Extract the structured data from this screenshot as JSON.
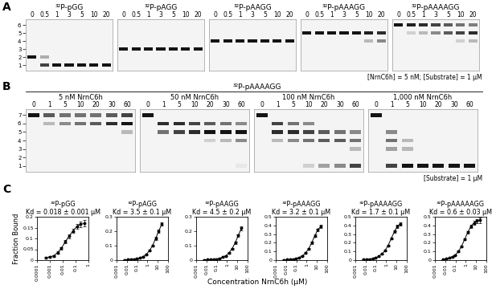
{
  "panel_labels": [
    "A",
    "B",
    "C"
  ],
  "gel_panels": [
    {
      "note": "[NrnC6h] = 5 nM; [Substrate] = 1 μM",
      "size_markers": [
        1,
        2,
        3,
        4,
        5,
        6
      ],
      "ylim": [
        0.3,
        6.7
      ],
      "gels": [
        {
          "title": "³²P-pGG",
          "lanes": [
            "0",
            "0.5",
            "1",
            "3",
            "5",
            "10",
            "20"
          ],
          "bands": [
            [
              [
                2,
                1.0
              ]
            ],
            [
              [
                2,
                0.35
              ],
              [
                1,
                0.8
              ]
            ],
            [
              [
                1,
                1.0
              ]
            ],
            [
              [
                1,
                1.0
              ]
            ],
            [
              [
                1,
                1.0
              ]
            ],
            [
              [
                1,
                1.0
              ]
            ],
            [
              [
                1,
                1.0
              ]
            ]
          ]
        },
        {
          "title": "³²P-pAGG",
          "lanes": [
            "0",
            "0.5",
            "1",
            "3",
            "5",
            "10",
            "20"
          ],
          "bands": [
            [
              [
                3,
                1.0
              ]
            ],
            [
              [
                3,
                1.0
              ]
            ],
            [
              [
                3,
                1.0
              ]
            ],
            [
              [
                3,
                1.0
              ]
            ],
            [
              [
                3,
                1.0
              ]
            ],
            [
              [
                3,
                1.0
              ]
            ],
            [
              [
                3,
                1.0
              ]
            ]
          ]
        },
        {
          "title": "³²P-pAAGG",
          "lanes": [
            "0",
            "0.5",
            "1",
            "3",
            "5",
            "10",
            "20"
          ],
          "bands": [
            [
              [
                4,
                1.0
              ]
            ],
            [
              [
                4,
                1.0
              ]
            ],
            [
              [
                4,
                1.0
              ]
            ],
            [
              [
                4,
                1.0
              ]
            ],
            [
              [
                4,
                1.0
              ]
            ],
            [
              [
                4,
                1.0
              ]
            ],
            [
              [
                4,
                1.0
              ]
            ]
          ]
        },
        {
          "title": "³²P-pAAAGG",
          "lanes": [
            "0",
            "0.5",
            "1",
            "3",
            "5",
            "10",
            "20"
          ],
          "bands": [
            [
              [
                5,
                1.0
              ]
            ],
            [
              [
                5,
                1.0
              ]
            ],
            [
              [
                5,
                1.0
              ]
            ],
            [
              [
                5,
                1.0
              ]
            ],
            [
              [
                5,
                1.0
              ]
            ],
            [
              [
                5,
                0.95
              ],
              [
                4,
                0.3
              ]
            ],
            [
              [
                5,
                0.9
              ],
              [
                4,
                0.5
              ]
            ]
          ]
        },
        {
          "title": "³²P-pAAAAGG",
          "lanes": [
            "0",
            "0.5",
            "1",
            "3",
            "5",
            "10",
            "20"
          ],
          "bands": [
            [
              [
                6,
                1.0
              ]
            ],
            [
              [
                6,
                0.95
              ],
              [
                5,
                0.2
              ]
            ],
            [
              [
                6,
                0.9
              ],
              [
                5,
                0.3
              ]
            ],
            [
              [
                6,
                0.8
              ],
              [
                5,
                0.5
              ]
            ],
            [
              [
                6,
                0.7
              ],
              [
                5,
                0.7
              ]
            ],
            [
              [
                6,
                0.6
              ],
              [
                5,
                0.8
              ],
              [
                4,
                0.2
              ]
            ],
            [
              [
                6,
                0.55
              ],
              [
                5,
                0.9
              ],
              [
                4,
                0.3
              ]
            ]
          ]
        }
      ]
    },
    {
      "header": "³²P-pAAAAGG",
      "note": "[Substrate] = 1 μM",
      "size_markers": [
        1,
        2,
        3,
        4,
        5,
        6,
        7
      ],
      "ylim": [
        0.3,
        7.7
      ],
      "gels": [
        {
          "title": "5 nM NrnC6h",
          "lanes": [
            "0",
            "1",
            "5",
            "10",
            "20",
            "30",
            "60"
          ],
          "bands": [
            [
              [
                7,
                1.0
              ]
            ],
            [
              [
                7,
                0.7
              ],
              [
                6,
                0.3
              ]
            ],
            [
              [
                7,
                0.6
              ],
              [
                6,
                0.5
              ]
            ],
            [
              [
                7,
                0.6
              ],
              [
                6,
                0.6
              ]
            ],
            [
              [
                7,
                0.6
              ],
              [
                6,
                0.7
              ]
            ],
            [
              [
                7,
                0.7
              ],
              [
                6,
                0.9
              ]
            ],
            [
              [
                7,
                0.8
              ],
              [
                6,
                1.0
              ],
              [
                5,
                0.3
              ]
            ]
          ]
        },
        {
          "title": "50 nM NrnC6h",
          "lanes": [
            "0",
            "1",
            "5",
            "10",
            "20",
            "30",
            "60"
          ],
          "bands": [
            [
              [
                7,
                1.0
              ]
            ],
            [
              [
                6,
                0.9
              ],
              [
                5,
                0.6
              ]
            ],
            [
              [
                6,
                0.9
              ],
              [
                5,
                0.8
              ]
            ],
            [
              [
                6,
                0.8
              ],
              [
                5,
                0.9
              ]
            ],
            [
              [
                6,
                0.7
              ],
              [
                5,
                1.0
              ],
              [
                4,
                0.2
              ]
            ],
            [
              [
                6,
                0.6
              ],
              [
                5,
                1.0
              ],
              [
                4,
                0.3
              ]
            ],
            [
              [
                6,
                0.5
              ],
              [
                5,
                1.0
              ],
              [
                4,
                0.5
              ],
              [
                1,
                0.1
              ]
            ]
          ]
        },
        {
          "title": "100 nM NrnC6h",
          "lanes": [
            "0",
            "1",
            "5",
            "10",
            "20",
            "30",
            "60"
          ],
          "bands": [
            [
              [
                7,
                1.0
              ]
            ],
            [
              [
                6,
                0.8
              ],
              [
                5,
                0.9
              ],
              [
                4,
                0.3
              ]
            ],
            [
              [
                6,
                0.6
              ],
              [
                5,
                0.9
              ],
              [
                4,
                0.5
              ]
            ],
            [
              [
                6,
                0.5
              ],
              [
                5,
                0.8
              ],
              [
                4,
                0.6
              ],
              [
                1,
                0.2
              ]
            ],
            [
              [
                5,
                0.7
              ],
              [
                4,
                0.7
              ],
              [
                1,
                0.4
              ]
            ],
            [
              [
                5,
                0.6
              ],
              [
                4,
                0.7
              ],
              [
                1,
                0.5
              ]
            ],
            [
              [
                5,
                0.5
              ],
              [
                4,
                0.6
              ],
              [
                3,
                0.3
              ],
              [
                1,
                0.8
              ]
            ]
          ]
        },
        {
          "title": "1,000 nM NrnC6h",
          "lanes": [
            "0",
            "1",
            "5",
            "10",
            "20",
            "30",
            "60"
          ],
          "bands": [
            [
              [
                7,
                1.0
              ]
            ],
            [
              [
                5,
                0.5
              ],
              [
                4,
                0.6
              ],
              [
                3,
                0.4
              ],
              [
                1,
                0.8
              ]
            ],
            [
              [
                4,
                0.3
              ],
              [
                3,
                0.3
              ],
              [
                1,
                1.0
              ]
            ],
            [
              [
                1,
                1.0
              ]
            ],
            [
              [
                1,
                1.0
              ]
            ],
            [
              [
                1,
                1.0
              ]
            ],
            [
              [
                1,
                1.0
              ]
            ]
          ]
        }
      ]
    }
  ],
  "x_label": "Concentration NrnC6h (μM)",
  "chart_data": [
    {
      "type": "line",
      "title": "³²P-pGG",
      "subtitle": "Kd = 0.018 ± 0.001 μM",
      "y_label": "Fraction Bound",
      "log": "x",
      "color": "#000000",
      "marker": "o",
      "line_style": "solid",
      "x": [
        0.0005,
        0.001,
        0.002,
        0.004,
        0.008,
        0.016,
        0.031,
        0.0625,
        0.125,
        0.25,
        0.5
      ],
      "values": [
        0.01,
        0.015,
        0.02,
        0.035,
        0.055,
        0.085,
        0.11,
        0.135,
        0.155,
        0.165,
        0.17
      ],
      "errors": [
        0.003,
        0.003,
        0.004,
        0.005,
        0.006,
        0.008,
        0.01,
        0.01,
        0.012,
        0.012,
        0.015
      ],
      "xlim": [
        0.0001,
        1
      ],
      "xticks": [
        0.0001,
        0.001,
        0.01,
        0.1,
        1
      ],
      "ylim": [
        0,
        0.2
      ],
      "yticks": [
        0,
        0.05,
        0.1,
        0.15,
        0.2
      ]
    },
    {
      "type": "line",
      "title": "³²P-pAGG",
      "subtitle": "Kd = 3.5 ± 0.1 μM",
      "log": "x",
      "color": "#000000",
      "marker": "o",
      "line_style": "solid",
      "x": [
        0.0061,
        0.012,
        0.024,
        0.049,
        0.098,
        0.195,
        0.39,
        0.78,
        1.56,
        3.125,
        6.25,
        12.5,
        25
      ],
      "values": [
        0.002,
        0.003,
        0.005,
        0.007,
        0.01,
        0.015,
        0.025,
        0.04,
        0.065,
        0.1,
        0.15,
        0.2,
        0.25
      ],
      "errors": [
        0.002,
        0.002,
        0.002,
        0.003,
        0.003,
        0.004,
        0.004,
        0.005,
        0.006,
        0.008,
        0.01,
        0.012,
        0.012
      ],
      "xlim": [
        0.001,
        100
      ],
      "xticks": [
        0.001,
        0.01,
        0.1,
        1,
        10,
        100
      ],
      "ylim": [
        0,
        0.3
      ],
      "yticks": [
        0,
        0.1,
        0.2,
        0.3
      ]
    },
    {
      "type": "line",
      "title": "³²P-pAAGG",
      "subtitle": "Kd = 4.5 ± 0.2 μM",
      "log": "x",
      "color": "#000000",
      "marker": "o",
      "line_style": "solid",
      "x": [
        0.0061,
        0.012,
        0.024,
        0.049,
        0.098,
        0.195,
        0.39,
        0.78,
        1.56,
        3.125,
        6.25,
        12.5,
        25
      ],
      "values": [
        0.002,
        0.003,
        0.004,
        0.006,
        0.008,
        0.012,
        0.02,
        0.03,
        0.05,
        0.08,
        0.12,
        0.17,
        0.22
      ],
      "errors": [
        0.002,
        0.002,
        0.002,
        0.002,
        0.003,
        0.003,
        0.004,
        0.004,
        0.005,
        0.006,
        0.008,
        0.01,
        0.012
      ],
      "xlim": [
        0.001,
        100
      ],
      "xticks": [
        0.001,
        0.01,
        0.1,
        1,
        10,
        100
      ],
      "ylim": [
        0,
        0.3
      ],
      "yticks": [
        0,
        0.1,
        0.2,
        0.3
      ]
    },
    {
      "type": "line",
      "title": "³²P-pAAAGG",
      "subtitle": "Kd = 3.2 ± 0.1 μM",
      "log": "x",
      "color": "#000000",
      "marker": "o",
      "line_style": "solid",
      "x": [
        0.0061,
        0.012,
        0.024,
        0.049,
        0.098,
        0.195,
        0.39,
        0.78,
        1.56,
        3.125,
        6.25,
        12.5,
        25
      ],
      "values": [
        0.003,
        0.005,
        0.008,
        0.012,
        0.018,
        0.03,
        0.05,
        0.08,
        0.13,
        0.2,
        0.28,
        0.35,
        0.39
      ],
      "errors": [
        0.002,
        0.002,
        0.003,
        0.003,
        0.004,
        0.005,
        0.006,
        0.008,
        0.01,
        0.012,
        0.015,
        0.015,
        0.015
      ],
      "xlim": [
        0.001,
        100
      ],
      "xticks": [
        0.001,
        0.01,
        0.1,
        1,
        10,
        100
      ],
      "ylim": [
        0,
        0.5
      ],
      "yticks": [
        0,
        0.1,
        0.2,
        0.3,
        0.4,
        0.5
      ]
    },
    {
      "type": "line",
      "title": "³²P-pAAAAGG",
      "subtitle": "Kd = 1.7 ± 0.1 μM",
      "log": "x",
      "color": "#000000",
      "marker": "o",
      "line_style": "solid",
      "x": [
        0.0061,
        0.012,
        0.024,
        0.049,
        0.098,
        0.195,
        0.39,
        0.78,
        1.56,
        3.125,
        6.25,
        12.5,
        25
      ],
      "values": [
        0.005,
        0.008,
        0.012,
        0.018,
        0.028,
        0.045,
        0.07,
        0.11,
        0.17,
        0.25,
        0.33,
        0.39,
        0.42
      ],
      "errors": [
        0.002,
        0.002,
        0.003,
        0.003,
        0.004,
        0.005,
        0.006,
        0.008,
        0.01,
        0.012,
        0.015,
        0.015,
        0.018
      ],
      "xlim": [
        0.001,
        100
      ],
      "xticks": [
        0.001,
        0.01,
        0.1,
        1,
        10,
        100
      ],
      "ylim": [
        0,
        0.5
      ],
      "yticks": [
        0,
        0.1,
        0.2,
        0.3,
        0.4,
        0.5
      ]
    },
    {
      "type": "line",
      "title": "³²P-pAAAAAGG",
      "subtitle": "Kd = 0.6 ± 0.03 μM",
      "log": "x",
      "color": "#000000",
      "marker": "o",
      "line_style": "solid",
      "x": [
        0.0061,
        0.012,
        0.024,
        0.049,
        0.098,
        0.195,
        0.39,
        0.78,
        1.56,
        3.125,
        6.25,
        12.5,
        25
      ],
      "values": [
        0.01,
        0.015,
        0.025,
        0.04,
        0.06,
        0.1,
        0.16,
        0.24,
        0.32,
        0.39,
        0.43,
        0.45,
        0.46
      ],
      "errors": [
        0.003,
        0.003,
        0.004,
        0.005,
        0.006,
        0.008,
        0.01,
        0.012,
        0.015,
        0.018,
        0.02,
        0.025,
        0.03
      ],
      "xlim": [
        0.001,
        100
      ],
      "xticks": [
        0.001,
        0.01,
        0.1,
        1,
        10,
        100
      ],
      "ylim": [
        0,
        0.5
      ],
      "yticks": [
        0,
        0.1,
        0.2,
        0.3,
        0.4,
        0.5
      ]
    }
  ]
}
